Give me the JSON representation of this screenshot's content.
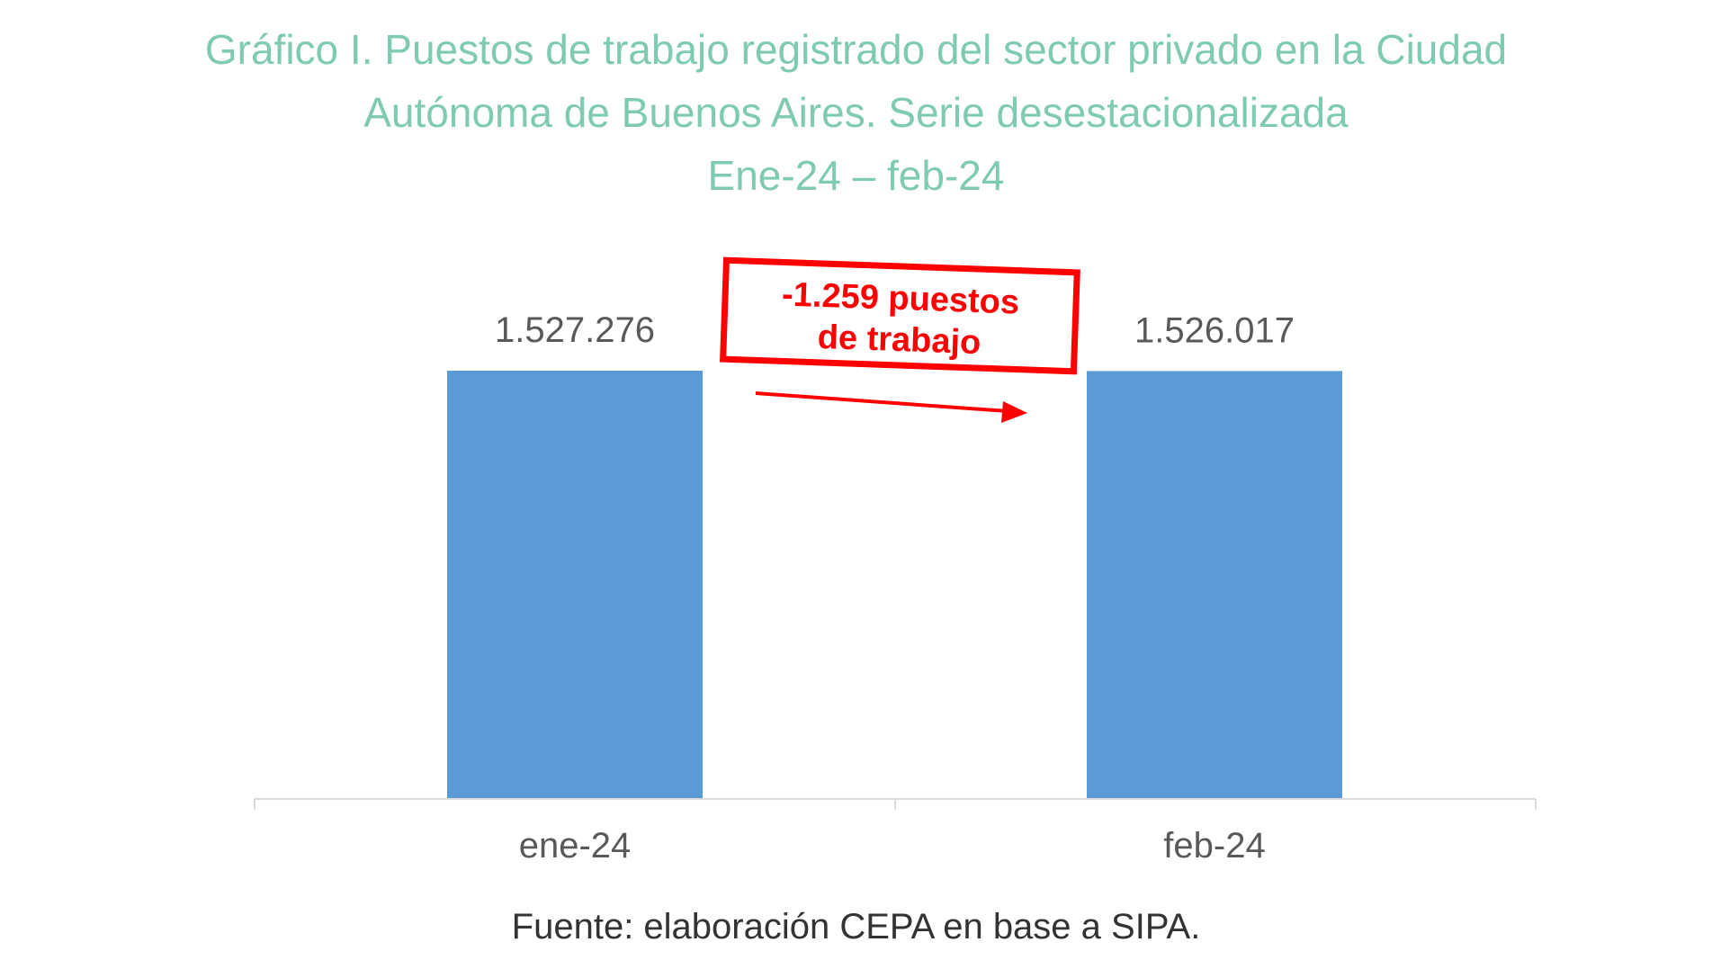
{
  "chart_data": {
    "type": "bar",
    "title_lines": [
      "Gráfico I. Puestos de trabajo registrado del sector privado en la Ciudad",
      "Autónoma de Buenos Aires. Serie desestacionalizada",
      "Ene-24 – feb-24"
    ],
    "categories": [
      "ene-24",
      "feb-24"
    ],
    "values": [
      1527276,
      1526017
    ],
    "value_labels": [
      "1.527.276",
      "1.526.017"
    ],
    "annotation": {
      "line1": "-1.259 puestos",
      "line2": "de trabajo"
    },
    "source": "Fuente: elaboración CEPA en base a SIPA.",
    "ylim": [
      0,
      1527276
    ],
    "grid": false,
    "legend": "none",
    "colors": {
      "title": "#7ECBB0",
      "bar": "#5B9BD5",
      "annotation": "#FF0000",
      "axis": "#D9D9D9",
      "label": "#595959"
    }
  }
}
